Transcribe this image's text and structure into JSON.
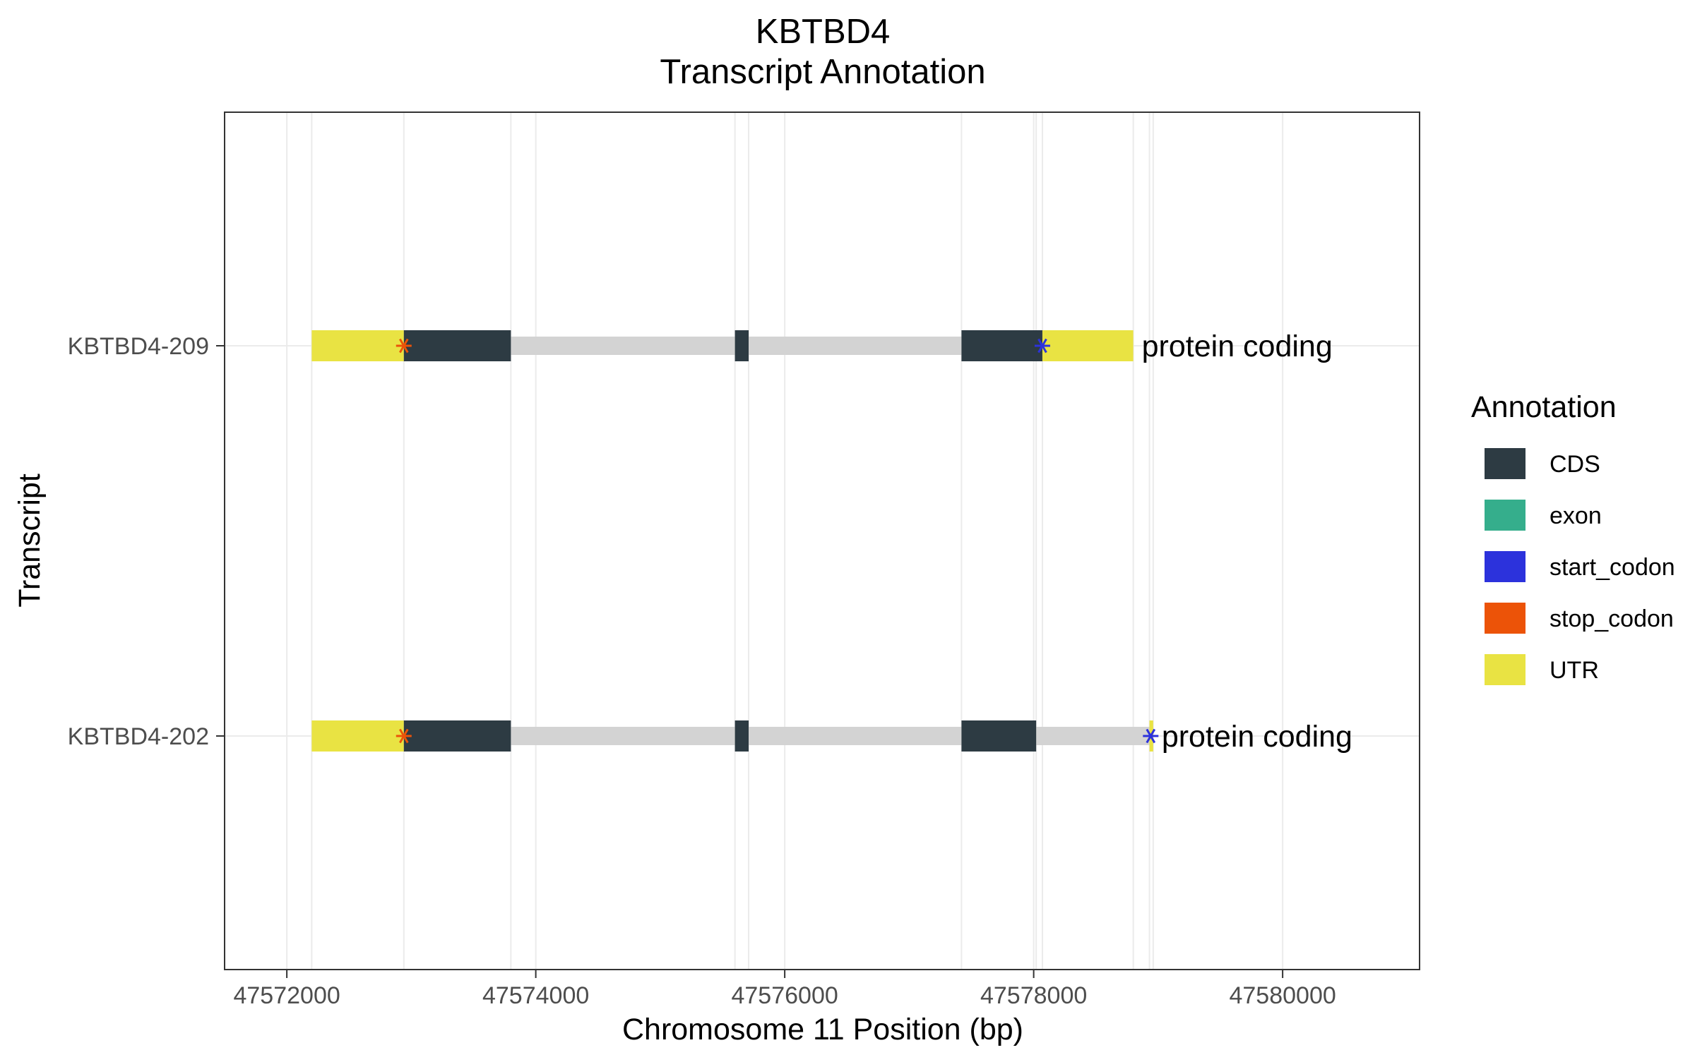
{
  "chart_data": {
    "type": "gene-structure",
    "title": "KBTBD4",
    "subtitle": "Transcript Annotation",
    "xlabel": "Chromosome 11 Position (bp)",
    "ylabel": "Transcript",
    "xlim": [
      47571500,
      47581100
    ],
    "x_ticks": [
      47572000,
      47574000,
      47576000,
      47578000,
      47580000
    ],
    "grid": true,
    "legend": {
      "title": "Annotation",
      "placement": "right",
      "items": [
        {
          "name": "CDS",
          "color": "#2d3b43"
        },
        {
          "name": "exon",
          "color": "#35ae8c"
        },
        {
          "name": "start_codon",
          "color": "#2c32dc"
        },
        {
          "name": "stop_codon",
          "color": "#ec5308"
        },
        {
          "name": "UTR",
          "color": "#e9e343"
        }
      ]
    },
    "intron_color": "#d3d3d3",
    "transcripts": [
      {
        "name": "KBTBD4-209",
        "type_label": "protein coding",
        "start": 47572200,
        "end": 47578800,
        "features": [
          {
            "type": "UTR",
            "start": 47572200,
            "end": 47572940
          },
          {
            "type": "CDS",
            "start": 47572940,
            "end": 47573800
          },
          {
            "type": "CDS",
            "start": 47575600,
            "end": 47575710
          },
          {
            "type": "CDS",
            "start": 47577420,
            "end": 47578070
          },
          {
            "type": "UTR",
            "start": 47578070,
            "end": 47578800
          },
          {
            "type": "stop_codon",
            "pos": 47572940
          },
          {
            "type": "start_codon",
            "pos": 47578070
          }
        ]
      },
      {
        "name": "KBTBD4-202",
        "type_label": "protein coding",
        "start": 47572200,
        "end": 47578960,
        "features": [
          {
            "type": "UTR",
            "start": 47572200,
            "end": 47572940
          },
          {
            "type": "CDS",
            "start": 47572940,
            "end": 47573800
          },
          {
            "type": "CDS",
            "start": 47575600,
            "end": 47575710
          },
          {
            "type": "CDS",
            "start": 47577420,
            "end": 47578020
          },
          {
            "type": "UTR",
            "start": 47578930,
            "end": 47578960
          },
          {
            "type": "stop_codon",
            "pos": 47572940
          },
          {
            "type": "start_codon",
            "pos": 47578940
          }
        ]
      }
    ]
  }
}
